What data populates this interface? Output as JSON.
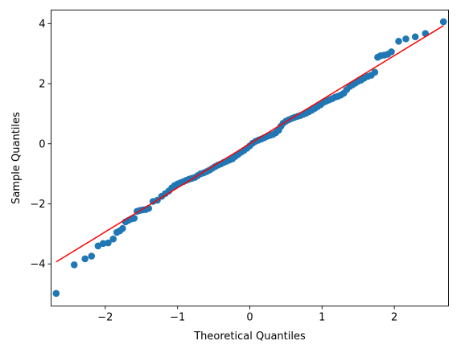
{
  "chart_data": {
    "type": "scatter",
    "title": "",
    "xlabel": "Theoretical Quantiles",
    "ylabel": "Sample Quantiles",
    "xlim": [
      -2.75,
      2.75
    ],
    "ylim": [
      -5.4,
      4.45
    ],
    "xticks": [
      -2,
      -1,
      0,
      1,
      2
    ],
    "xtick_labels": [
      "−2",
      "−1",
      "0",
      "1",
      "2"
    ],
    "yticks": [
      -4,
      -2,
      0,
      2,
      4
    ],
    "ytick_labels": [
      "−4",
      "−2",
      "0",
      "2",
      "4"
    ],
    "grid": false,
    "legend": "none",
    "point_color": "#1f77b4",
    "line_color": "#ff0000",
    "reference_line": {
      "x": [
        -2.68,
        2.68
      ],
      "y": [
        -3.93,
        3.93
      ]
    },
    "points": [
      [
        -2.68,
        -4.98
      ],
      [
        -2.43,
        -4.03
      ],
      [
        -2.28,
        -3.83
      ],
      [
        -2.19,
        -3.74
      ],
      [
        -2.1,
        -3.4
      ],
      [
        -2.03,
        -3.32
      ],
      [
        -1.96,
        -3.3
      ],
      [
        -1.89,
        -3.17
      ],
      [
        -1.84,
        -2.95
      ],
      [
        -1.8,
        -2.9
      ],
      [
        -1.76,
        -2.82
      ],
      [
        -1.72,
        -2.6
      ],
      [
        -1.68,
        -2.55
      ],
      [
        -1.64,
        -2.5
      ],
      [
        -1.6,
        -2.48
      ],
      [
        -1.56,
        -2.25
      ],
      [
        -1.52,
        -2.22
      ],
      [
        -1.48,
        -2.2
      ],
      [
        -1.44,
        -2.19
      ],
      [
        -1.4,
        -2.15
      ],
      [
        -1.34,
        -1.92
      ],
      [
        -1.28,
        -1.88
      ],
      [
        -1.22,
        -1.75
      ],
      [
        -1.17,
        -1.66
      ],
      [
        -1.12,
        -1.57
      ],
      [
        -1.08,
        -1.47
      ],
      [
        -1.04,
        -1.39
      ],
      [
        -1.0,
        -1.34
      ],
      [
        -0.96,
        -1.3
      ],
      [
        -0.92,
        -1.26
      ],
      [
        -0.88,
        -1.22
      ],
      [
        -0.84,
        -1.18
      ],
      [
        -0.8,
        -1.15
      ],
      [
        -0.76,
        -1.12
      ],
      [
        -0.72,
        -1.06
      ],
      [
        -0.68,
        -1.0
      ],
      [
        -0.64,
        -0.97
      ],
      [
        -0.6,
        -0.93
      ],
      [
        -0.56,
        -0.88
      ],
      [
        -0.52,
        -0.82
      ],
      [
        -0.48,
        -0.76
      ],
      [
        -0.44,
        -0.71
      ],
      [
        -0.4,
        -0.67
      ],
      [
        -0.36,
        -0.62
      ],
      [
        -0.32,
        -0.58
      ],
      [
        -0.28,
        -0.54
      ],
      [
        -0.24,
        -0.5
      ],
      [
        -0.2,
        -0.42
      ],
      [
        -0.16,
        -0.35
      ],
      [
        -0.12,
        -0.28
      ],
      [
        -0.08,
        -0.22
      ],
      [
        -0.04,
        -0.15
      ],
      [
        0.0,
        -0.07
      ],
      [
        0.04,
        0.02
      ],
      [
        0.08,
        0.08
      ],
      [
        0.12,
        0.12
      ],
      [
        0.16,
        0.16
      ],
      [
        0.2,
        0.2
      ],
      [
        0.24,
        0.25
      ],
      [
        0.28,
        0.28
      ],
      [
        0.32,
        0.31
      ],
      [
        0.36,
        0.37
      ],
      [
        0.4,
        0.45
      ],
      [
        0.43,
        0.58
      ],
      [
        0.46,
        0.68
      ],
      [
        0.5,
        0.75
      ],
      [
        0.54,
        0.8
      ],
      [
        0.58,
        0.84
      ],
      [
        0.62,
        0.88
      ],
      [
        0.66,
        0.91
      ],
      [
        0.7,
        0.94
      ],
      [
        0.74,
        0.98
      ],
      [
        0.78,
        1.02
      ],
      [
        0.82,
        1.07
      ],
      [
        0.86,
        1.12
      ],
      [
        0.9,
        1.18
      ],
      [
        0.94,
        1.24
      ],
      [
        0.98,
        1.3
      ],
      [
        1.02,
        1.38
      ],
      [
        1.06,
        1.42
      ],
      [
        1.1,
        1.46
      ],
      [
        1.14,
        1.5
      ],
      [
        1.18,
        1.55
      ],
      [
        1.22,
        1.58
      ],
      [
        1.26,
        1.62
      ],
      [
        1.3,
        1.68
      ],
      [
        1.34,
        1.8
      ],
      [
        1.38,
        1.9
      ],
      [
        1.42,
        1.96
      ],
      [
        1.46,
        2.02
      ],
      [
        1.5,
        2.08
      ],
      [
        1.54,
        2.12
      ],
      [
        1.58,
        2.18
      ],
      [
        1.63,
        2.24
      ],
      [
        1.68,
        2.28
      ],
      [
        1.73,
        2.38
      ],
      [
        1.77,
        2.88
      ],
      [
        1.81,
        2.93
      ],
      [
        1.86,
        2.95
      ],
      [
        1.91,
        2.98
      ],
      [
        1.96,
        3.06
      ],
      [
        2.06,
        3.41
      ],
      [
        2.16,
        3.49
      ],
      [
        2.29,
        3.56
      ],
      [
        2.43,
        3.67
      ],
      [
        2.68,
        4.06
      ]
    ]
  }
}
